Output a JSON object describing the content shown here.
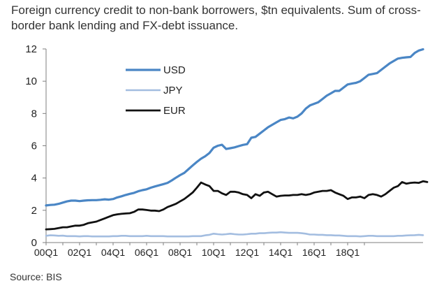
{
  "chart_data": {
    "type": "line",
    "title": "Foreign currency credit to non-bank borrowers, $tn equivalents. Sum of cross-border bank lending and FX-debt issuance.",
    "source": "Source: BIS",
    "xlabel": "",
    "ylabel": "",
    "x_start": "00Q1",
    "x_end": "19Q2",
    "x_ticks": [
      "00Q1",
      "02Q1",
      "04Q1",
      "06Q1",
      "08Q1",
      "10Q1",
      "12Q1",
      "14Q1",
      "16Q1",
      "18Q1"
    ],
    "y_ticks": [
      "0",
      "2",
      "4",
      "6",
      "8",
      "10",
      "12"
    ],
    "ylim": [
      0,
      12
    ],
    "grid": false,
    "legend_position": "top-left",
    "series": [
      {
        "name": "USD",
        "color": "#4a86c5",
        "values": [
          2.3,
          2.33,
          2.35,
          2.4,
          2.48,
          2.55,
          2.6,
          2.6,
          2.57,
          2.6,
          2.62,
          2.63,
          2.63,
          2.65,
          2.68,
          2.66,
          2.7,
          2.8,
          2.87,
          2.95,
          3.02,
          3.08,
          3.18,
          3.25,
          3.3,
          3.4,
          3.48,
          3.55,
          3.62,
          3.7,
          3.85,
          4.02,
          4.18,
          4.32,
          4.55,
          4.78,
          5.0,
          5.2,
          5.35,
          5.55,
          5.88,
          6.0,
          6.06,
          5.8,
          5.85,
          5.9,
          5.98,
          6.05,
          6.1,
          6.5,
          6.55,
          6.75,
          6.95,
          7.15,
          7.3,
          7.45,
          7.6,
          7.65,
          7.75,
          7.7,
          7.8,
          8.0,
          8.3,
          8.5,
          8.6,
          8.7,
          8.9,
          9.1,
          9.25,
          9.4,
          9.4,
          9.6,
          9.8,
          9.85,
          9.9,
          10.0,
          10.2,
          10.4,
          10.45,
          10.5,
          10.7,
          10.9,
          11.1,
          11.25,
          11.4,
          11.45,
          11.48,
          11.5,
          11.75,
          11.9,
          11.98
        ]
      },
      {
        "name": "JPY",
        "color": "#a3bde0",
        "values": [
          0.42,
          0.45,
          0.44,
          0.42,
          0.43,
          0.4,
          0.4,
          0.4,
          0.38,
          0.4,
          0.4,
          0.38,
          0.38,
          0.38,
          0.38,
          0.38,
          0.4,
          0.4,
          0.42,
          0.42,
          0.4,
          0.4,
          0.4,
          0.4,
          0.42,
          0.4,
          0.4,
          0.4,
          0.4,
          0.38,
          0.38,
          0.38,
          0.38,
          0.38,
          0.38,
          0.4,
          0.4,
          0.4,
          0.45,
          0.48,
          0.55,
          0.52,
          0.5,
          0.52,
          0.55,
          0.52,
          0.5,
          0.5,
          0.52,
          0.55,
          0.55,
          0.58,
          0.58,
          0.6,
          0.62,
          0.62,
          0.64,
          0.62,
          0.6,
          0.6,
          0.6,
          0.58,
          0.55,
          0.5,
          0.5,
          0.48,
          0.48,
          0.46,
          0.46,
          0.44,
          0.44,
          0.42,
          0.4,
          0.4,
          0.4,
          0.38,
          0.4,
          0.42,
          0.42,
          0.4,
          0.4,
          0.4,
          0.4,
          0.4,
          0.42,
          0.42,
          0.44,
          0.45,
          0.46,
          0.48,
          0.46
        ]
      },
      {
        "name": "EUR",
        "color": "#111111",
        "values": [
          0.82,
          0.83,
          0.85,
          0.9,
          0.95,
          0.95,
          1.0,
          1.05,
          1.05,
          1.1,
          1.2,
          1.25,
          1.3,
          1.4,
          1.5,
          1.6,
          1.7,
          1.75,
          1.78,
          1.8,
          1.82,
          1.9,
          2.05,
          2.05,
          2.02,
          1.98,
          1.98,
          1.95,
          2.05,
          2.2,
          2.3,
          2.4,
          2.55,
          2.7,
          2.9,
          3.1,
          3.4,
          3.72,
          3.6,
          3.5,
          3.2,
          3.2,
          3.05,
          2.95,
          3.15,
          3.15,
          3.1,
          3.0,
          2.95,
          2.75,
          3.0,
          2.9,
          3.1,
          3.15,
          3.0,
          2.85,
          2.9,
          2.92,
          2.92,
          2.95,
          2.95,
          3.0,
          2.95,
          3.0,
          3.1,
          3.15,
          3.2,
          3.2,
          3.25,
          3.1,
          3.0,
          2.9,
          2.7,
          2.8,
          2.8,
          2.85,
          2.75,
          2.95,
          3.0,
          2.95,
          2.85,
          3.0,
          3.2,
          3.4,
          3.5,
          3.75,
          3.65,
          3.7,
          3.72,
          3.7,
          3.8,
          3.75
        ]
      }
    ]
  }
}
